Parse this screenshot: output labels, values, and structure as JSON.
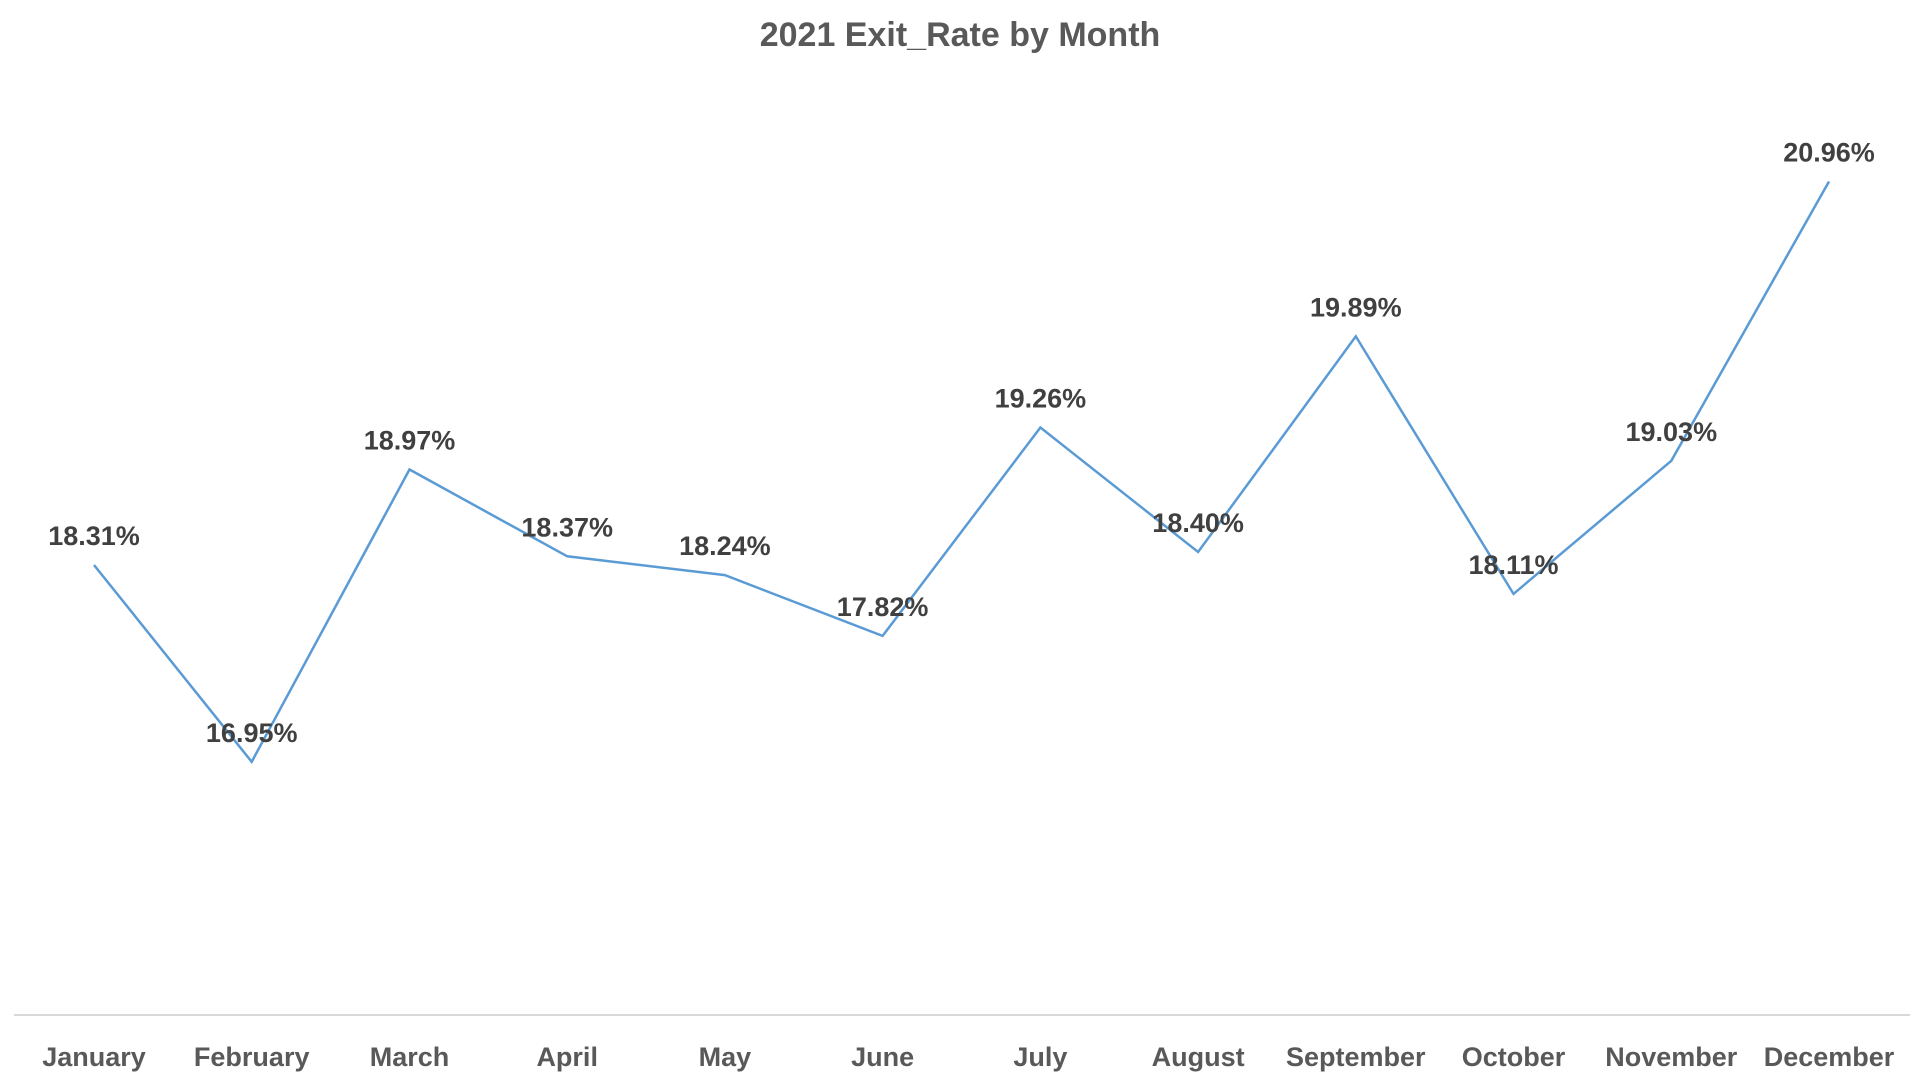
{
  "chart_data": {
    "type": "line",
    "title": "2021 Exit_Rate by Month",
    "xlabel": "",
    "ylabel": "",
    "categories": [
      "January",
      "February",
      "March",
      "April",
      "May",
      "June",
      "July",
      "August",
      "September",
      "October",
      "November",
      "December"
    ],
    "values": [
      18.31,
      16.95,
      18.97,
      18.37,
      18.24,
      17.82,
      19.26,
      18.4,
      19.89,
      18.11,
      19.03,
      20.96
    ],
    "data_labels": [
      "18.31%",
      "16.95%",
      "18.97%",
      "18.37%",
      "18.24%",
      "17.82%",
      "19.26%",
      "18.40%",
      "19.89%",
      "18.11%",
      "19.03%",
      "20.96%"
    ],
    "ylim": [
      15.2,
      21.8
    ],
    "grid": false,
    "legend": "none",
    "y_axis_visible": false,
    "series_color": "#5B9BD5",
    "axis_line_color": "#D9D9D9",
    "text_color": "#595959",
    "label_color": "#404040"
  }
}
